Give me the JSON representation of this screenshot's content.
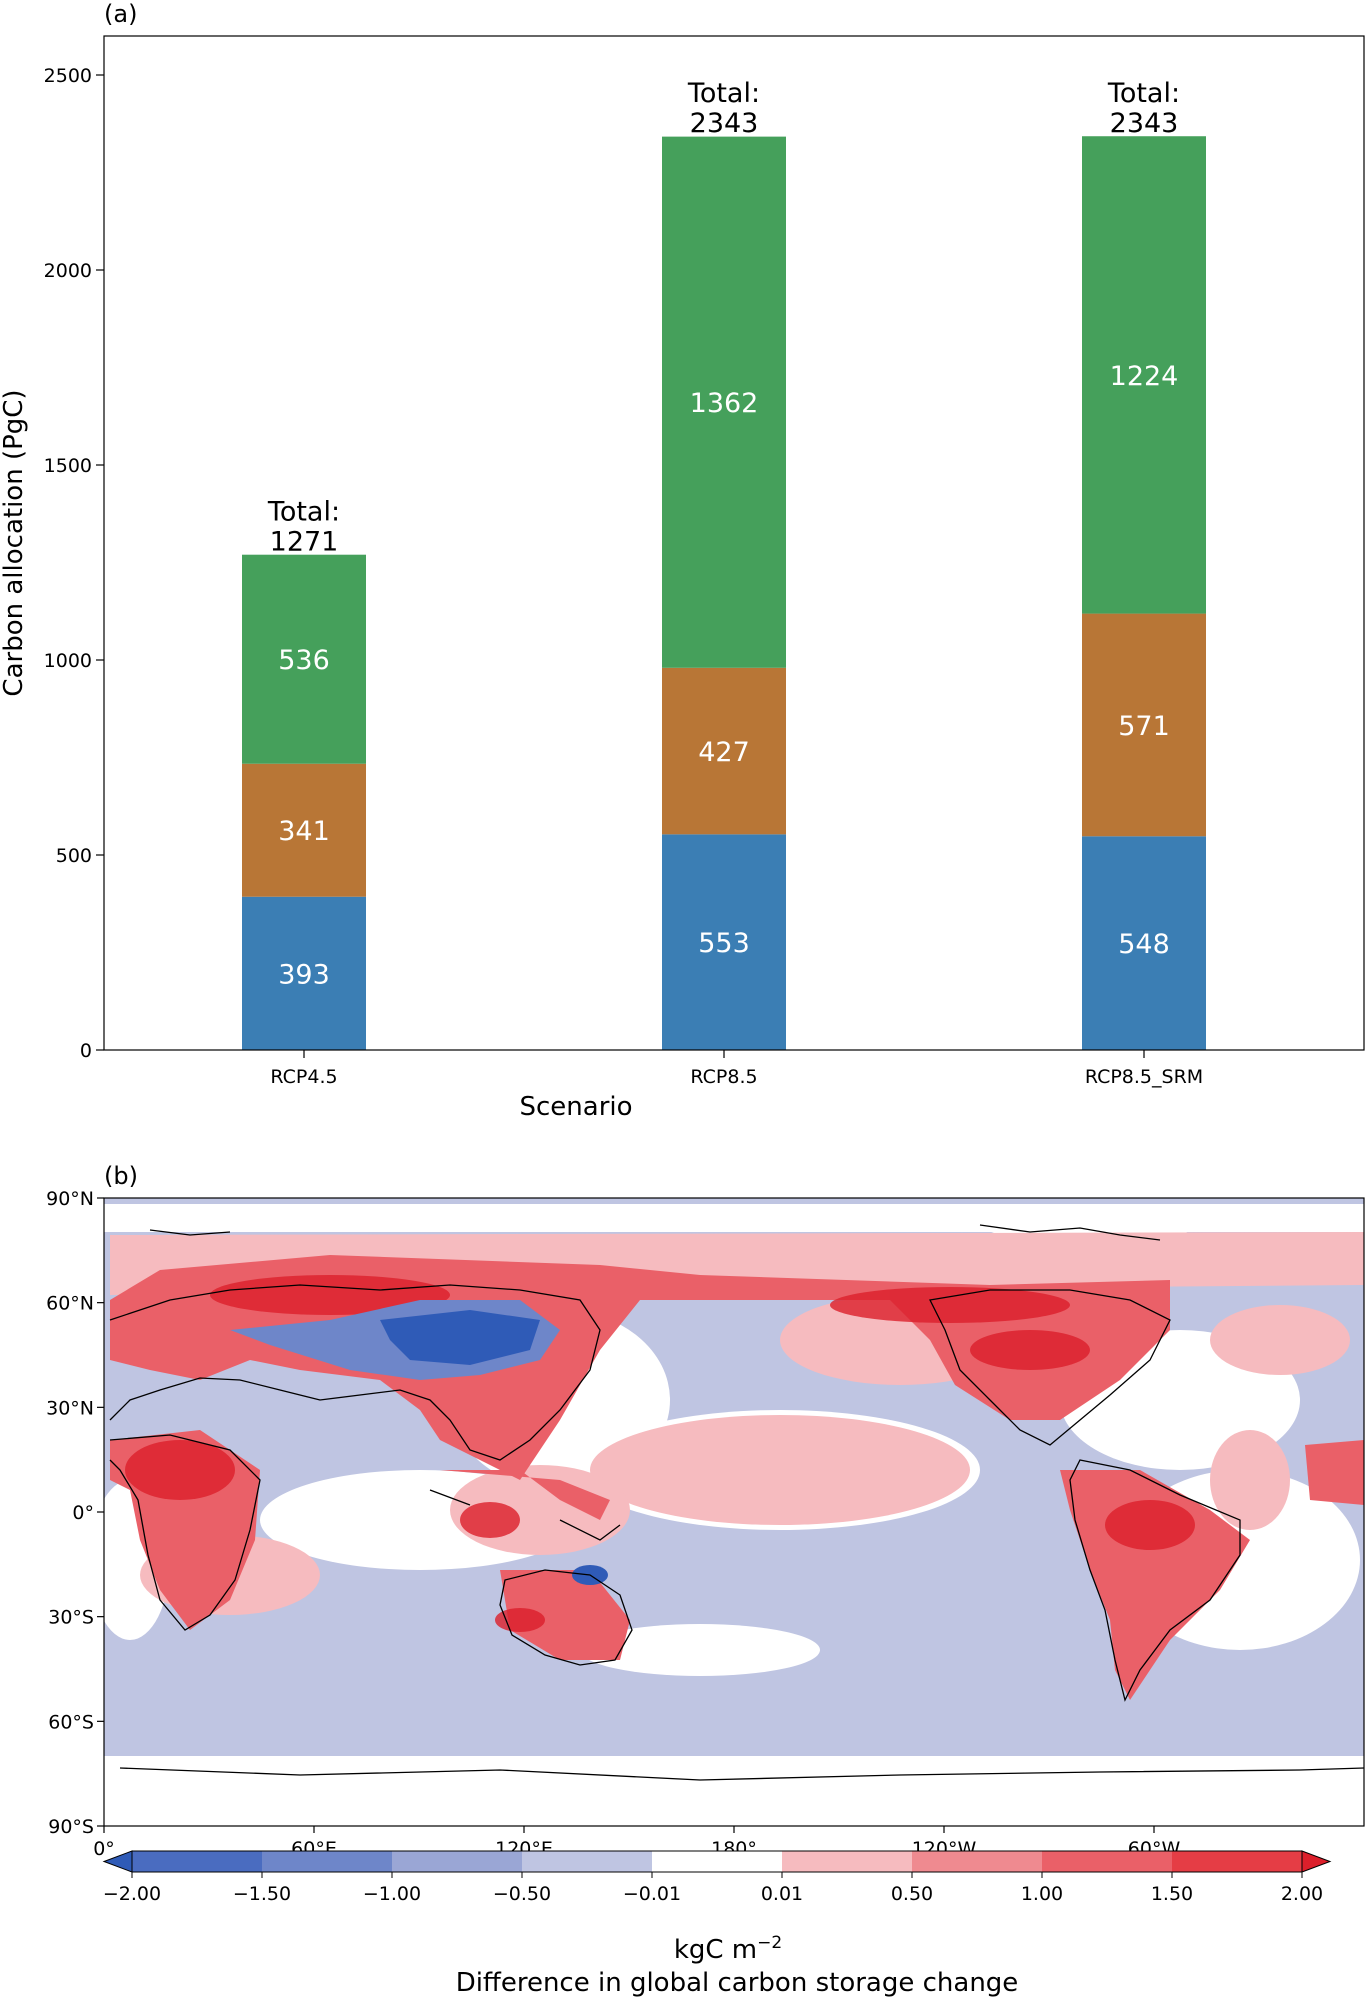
{
  "panel_a": {
    "label": "(a)",
    "chart_data": {
      "type": "bar",
      "stacked": true,
      "categories": [
        "RCP4.5",
        "RCP8.5",
        "RCP8.5_SRM"
      ],
      "series": [
        {
          "values": [
            393,
            553,
            548
          ],
          "color": "#3b7eb4"
        },
        {
          "values": [
            341,
            427,
            571
          ],
          "color": "#b87636"
        },
        {
          "values": [
            536,
            1362,
            1224
          ],
          "color": "#45a05b"
        }
      ],
      "totals": [
        1271,
        2343,
        2343
      ],
      "total_prefix": "Total:",
      "xlabel": "Scenario",
      "ylabel": "Carbon allocation (PgC)",
      "ylim": [
        0,
        2600
      ],
      "yticks": [
        0,
        500,
        1000,
        1500,
        2000,
        2500
      ],
      "grid": false,
      "legend": "none"
    }
  },
  "panel_b": {
    "label": "(b)",
    "chart_data": {
      "type": "heatmap",
      "projection": "plate-carree",
      "lat_ticks": [
        "90°N",
        "60°N",
        "30°N",
        "0°",
        "30°S",
        "60°S",
        "90°S"
      ],
      "lon_ticks": [
        "0°",
        "60°E",
        "120°E",
        "180°",
        "120°W",
        "60°W"
      ],
      "colorbar": {
        "levels": [
          "−2.00",
          "−1.50",
          "−1.00",
          "−0.50",
          "−0.01",
          "0.01",
          "0.50",
          "1.00",
          "1.50",
          "2.00"
        ],
        "colors": [
          "#2f5bb7",
          "#4a6cc0",
          "#6e86c9",
          "#9aa6d5",
          "#bfc5e2",
          "#ffffff",
          "#f6bbbf",
          "#ef8a90",
          "#ea6068",
          "#e53d45",
          "#dc1f2b"
        ],
        "unit": "kgC m",
        "unit_exp": "−2",
        "title": "Difference in global carbon storage change"
      }
    }
  }
}
